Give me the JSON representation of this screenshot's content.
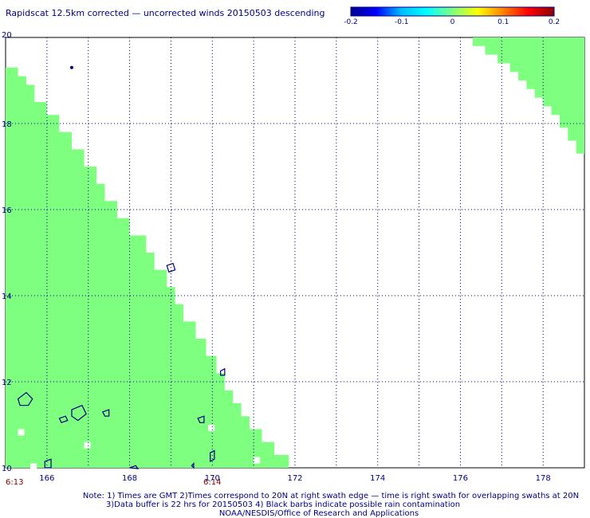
{
  "chart_data": {
    "type": "heatmap",
    "title": "Rapidscat 12.5km corrected — uncorrected winds 20150503 descending",
    "xlim": [
      165,
      179
    ],
    "ylim": [
      10,
      20
    ],
    "x_ticks": [
      166,
      168,
      170,
      172,
      174,
      176,
      178
    ],
    "y_ticks": [
      10,
      12,
      14,
      16,
      18,
      20
    ],
    "grid": true,
    "colorbar": {
      "range": [
        -0.2,
        0.2
      ],
      "ticks": [
        "-0.2",
        "-0.1",
        "0",
        "0.1",
        "0.2"
      ],
      "colors": [
        "#00008b",
        "#0000ff",
        "#00bfff",
        "#00ffff",
        "#7fff7f",
        "#ffff00",
        "#ff8000",
        "#ff0000",
        "#8b0000"
      ]
    },
    "swath_color": "#7fff7f",
    "swaths": [
      {
        "name": "left",
        "edges": [
          [
            10,
            171.85
          ],
          [
            10.3,
            171.5
          ],
          [
            10.6,
            171.2
          ],
          [
            10.9,
            170.9
          ],
          [
            11.2,
            170.7
          ],
          [
            11.5,
            170.5
          ],
          [
            11.8,
            170.3
          ],
          [
            12.2,
            170.1
          ],
          [
            12.6,
            169.85
          ],
          [
            13,
            169.6
          ],
          [
            13.4,
            169.3
          ],
          [
            13.8,
            169.1
          ],
          [
            14.2,
            168.9
          ],
          [
            14.6,
            168.6
          ],
          [
            15.0,
            168.4
          ],
          [
            15.4,
            168.0
          ],
          [
            15.8,
            167.7
          ],
          [
            16.2,
            167.4
          ],
          [
            16.6,
            167.2
          ],
          [
            17.0,
            166.9
          ],
          [
            17.4,
            166.6
          ],
          [
            17.8,
            166.3
          ],
          [
            18.2,
            166.0
          ],
          [
            18.5,
            165.7
          ],
          [
            18.9,
            165.5
          ],
          [
            19.1,
            165.3
          ],
          [
            19.3,
            165.0
          ]
        ]
      },
      {
        "name": "right",
        "edges": [
          [
            20.0,
            176.0
          ],
          [
            19.8,
            176.3
          ],
          [
            19.6,
            176.6
          ],
          [
            19.4,
            176.9
          ],
          [
            19.2,
            177.2
          ],
          [
            19.0,
            177.4
          ],
          [
            18.8,
            177.6
          ],
          [
            18.6,
            177.8
          ],
          [
            18.4,
            178.0
          ],
          [
            18.2,
            178.2
          ],
          [
            17.9,
            178.4
          ],
          [
            17.6,
            178.6
          ],
          [
            17.3,
            178.8
          ],
          [
            16.9,
            179.0
          ]
        ]
      }
    ],
    "times": [
      {
        "x": 165.0,
        "label": "6:13"
      },
      {
        "x": 170.0,
        "label": "6:14"
      }
    ],
    "notes": [
      "Note: 1) Times are GMT 2)Times correspond to 20N at right swath edge — time is right swath for overlapping swaths at 20N",
      "3)Data buffer is 22 hrs for 20150503 4) Black barbs indicate possible rain contamination",
      "NOAA/NESDIS/Office of Research and Applications"
    ]
  }
}
